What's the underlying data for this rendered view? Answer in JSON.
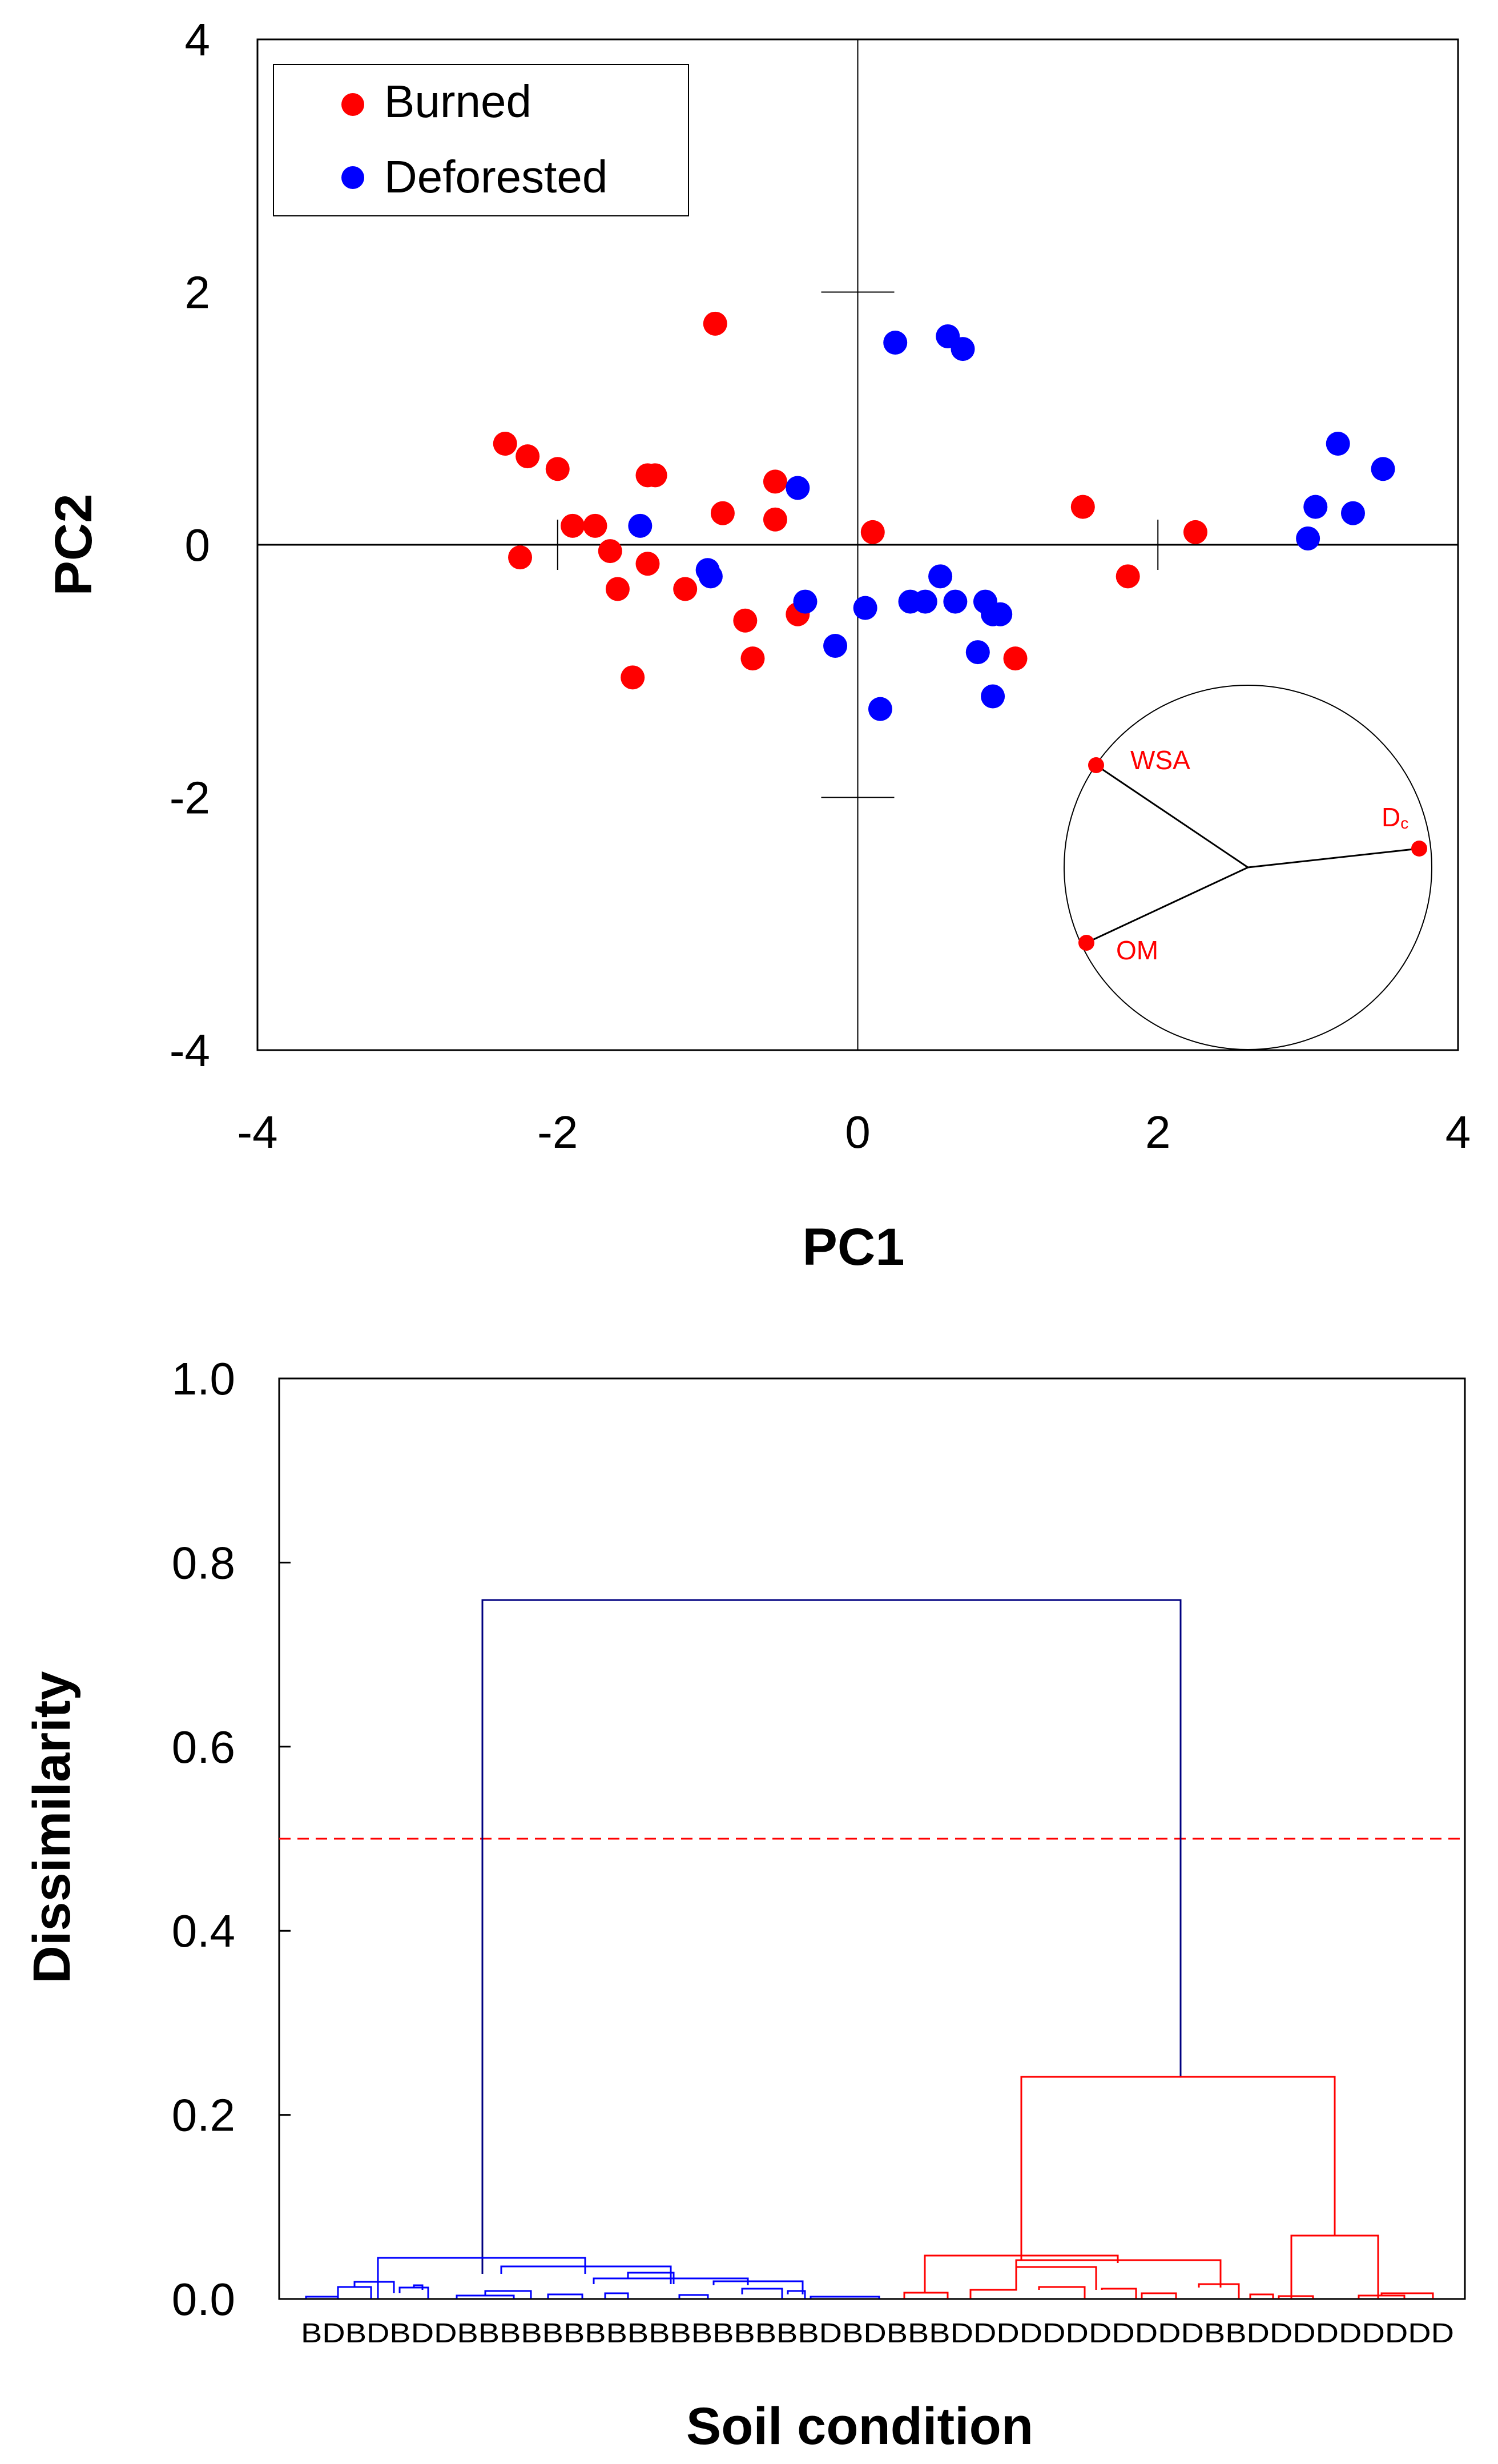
{
  "chart_data": [
    {
      "type": "scatter",
      "xlabel": "PC1",
      "ylabel": "PC2",
      "xlim": [
        -4,
        4
      ],
      "ylim": [
        -4,
        4
      ],
      "xticks": [
        "-4",
        "-2",
        "0",
        "2",
        "4"
      ],
      "yticks": [
        "4",
        "2",
        "0",
        "-2",
        "-4"
      ],
      "legend_position": "top-left",
      "series": [
        {
          "name": "Burned",
          "color": "#ff0000",
          "points": [
            [
              -2.35,
              0.8
            ],
            [
              -2.2,
              0.7
            ],
            [
              -2.0,
              0.6
            ],
            [
              -1.35,
              0.55
            ],
            [
              -1.4,
              0.55
            ],
            [
              -0.95,
              1.75
            ],
            [
              -0.55,
              0.5
            ],
            [
              -0.55,
              0.2
            ],
            [
              -0.9,
              0.25
            ],
            [
              -1.9,
              0.15
            ],
            [
              -1.75,
              0.15
            ],
            [
              -2.25,
              -0.1
            ],
            [
              -1.65,
              -0.05
            ],
            [
              -1.4,
              -0.15
            ],
            [
              -1.6,
              -0.35
            ],
            [
              -1.15,
              -0.35
            ],
            [
              -0.75,
              -0.6
            ],
            [
              -0.7,
              -0.9
            ],
            [
              -0.4,
              -0.55
            ],
            [
              -1.5,
              -1.05
            ],
            [
              0.1,
              0.1
            ],
            [
              1.05,
              -0.9
            ],
            [
              1.5,
              0.3
            ],
            [
              1.8,
              -0.25
            ],
            [
              2.25,
              0.1
            ]
          ]
        },
        {
          "name": "Deforested",
          "color": "#0000ff",
          "points": [
            [
              0.25,
              1.6
            ],
            [
              0.6,
              1.65
            ],
            [
              0.7,
              1.55
            ],
            [
              -0.4,
              0.45
            ],
            [
              -1.45,
              0.15
            ],
            [
              -1.0,
              -0.2
            ],
            [
              -0.98,
              -0.25
            ],
            [
              -0.35,
              -0.45
            ],
            [
              0.05,
              -0.5
            ],
            [
              -0.15,
              -0.8
            ],
            [
              0.15,
              -1.3
            ],
            [
              0.35,
              -0.45
            ],
            [
              0.45,
              -0.45
            ],
            [
              0.55,
              -0.25
            ],
            [
              0.65,
              -0.45
            ],
            [
              0.85,
              -0.45
            ],
            [
              0.9,
              -0.55
            ],
            [
              0.95,
              -0.55
            ],
            [
              0.8,
              -0.85
            ],
            [
              0.9,
              -1.2
            ],
            [
              3.0,
              0.05
            ],
            [
              3.05,
              0.3
            ],
            [
              3.2,
              0.8
            ],
            [
              3.3,
              0.25
            ],
            [
              3.5,
              0.6
            ]
          ]
        }
      ],
      "loadings_inset": {
        "vectors": [
          {
            "name": "WSA",
            "angle_deg": 134,
            "length": 1.0
          },
          {
            "name": "Dc",
            "angle_deg": 5,
            "length": 1.0
          },
          {
            "name": "OM",
            "angle_deg": 210,
            "length": 1.0
          }
        ],
        "color": "#ff0000",
        "labels": {
          "wsa": "WSA",
          "dc_main": "D",
          "dc_sub": "c",
          "om": "OM"
        }
      }
    },
    {
      "type": "dendrogram",
      "xlabel": "Soil condition",
      "ylabel": "Dissimilarity",
      "ylim": [
        0,
        1.0
      ],
      "yticks": [
        "1.0",
        "0.8",
        "0.6",
        "0.4",
        "0.2",
        "0.0"
      ],
      "cut_line": 0.5,
      "cut_line_color": "#ff0000",
      "leaf_labels": "BDBDBDDBBBBBBBBBBBBBBBBBDBDBBBDDDDDDDDDDDBBDDDDDDDDD",
      "clusters": [
        {
          "name": "blue",
          "color": "#0000ff",
          "leaves_range": [
            0,
            25
          ]
        },
        {
          "name": "red",
          "color": "#ff0000",
          "leaves_range": [
            26,
            51
          ]
        }
      ],
      "merges": [
        {
          "height": 0.76,
          "color": "#000080",
          "between": "blue-red"
        },
        {
          "height": 0.045,
          "color": "#0000ff",
          "between": "blue-top"
        },
        {
          "height": 0.035,
          "color": "#0000ff",
          "between": "blue-sub"
        },
        {
          "height": 0.24,
          "color": "#ff0000",
          "between": "red-top"
        },
        {
          "height": 0.062,
          "color": "#ff0000",
          "between": "red-right"
        },
        {
          "height": 0.03,
          "color": "#ff0000",
          "between": "red-left"
        }
      ]
    }
  ]
}
